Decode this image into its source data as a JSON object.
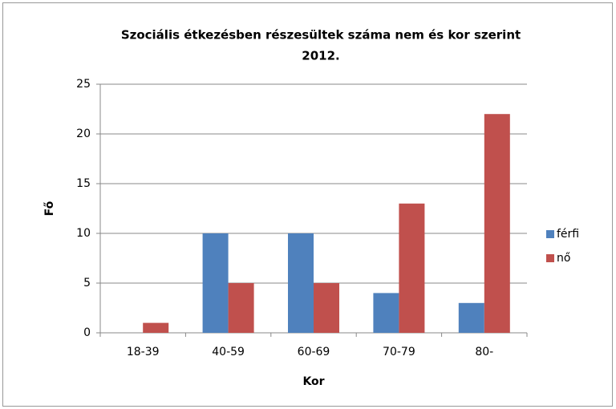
{
  "chart_data": {
    "type": "bar",
    "title": [
      "Szociális étkezésben részesültek száma nem és kor szerint",
      "2012."
    ],
    "x_label": "Kor",
    "y_label": "Fő",
    "categories": [
      "18-39",
      "40-59",
      "60-69",
      "70-79",
      "80-"
    ],
    "series": [
      {
        "name": "férfi",
        "color": "#4f81bd",
        "values": [
          0,
          10,
          10,
          4,
          3
        ]
      },
      {
        "name": "nő",
        "color": "#c0504d",
        "values": [
          1,
          5,
          5,
          13,
          22
        ]
      }
    ],
    "ylim": [
      0,
      25
    ],
    "yticks": [
      0,
      5,
      10,
      15,
      20,
      25
    ],
    "grid": true,
    "legend": "right"
  }
}
